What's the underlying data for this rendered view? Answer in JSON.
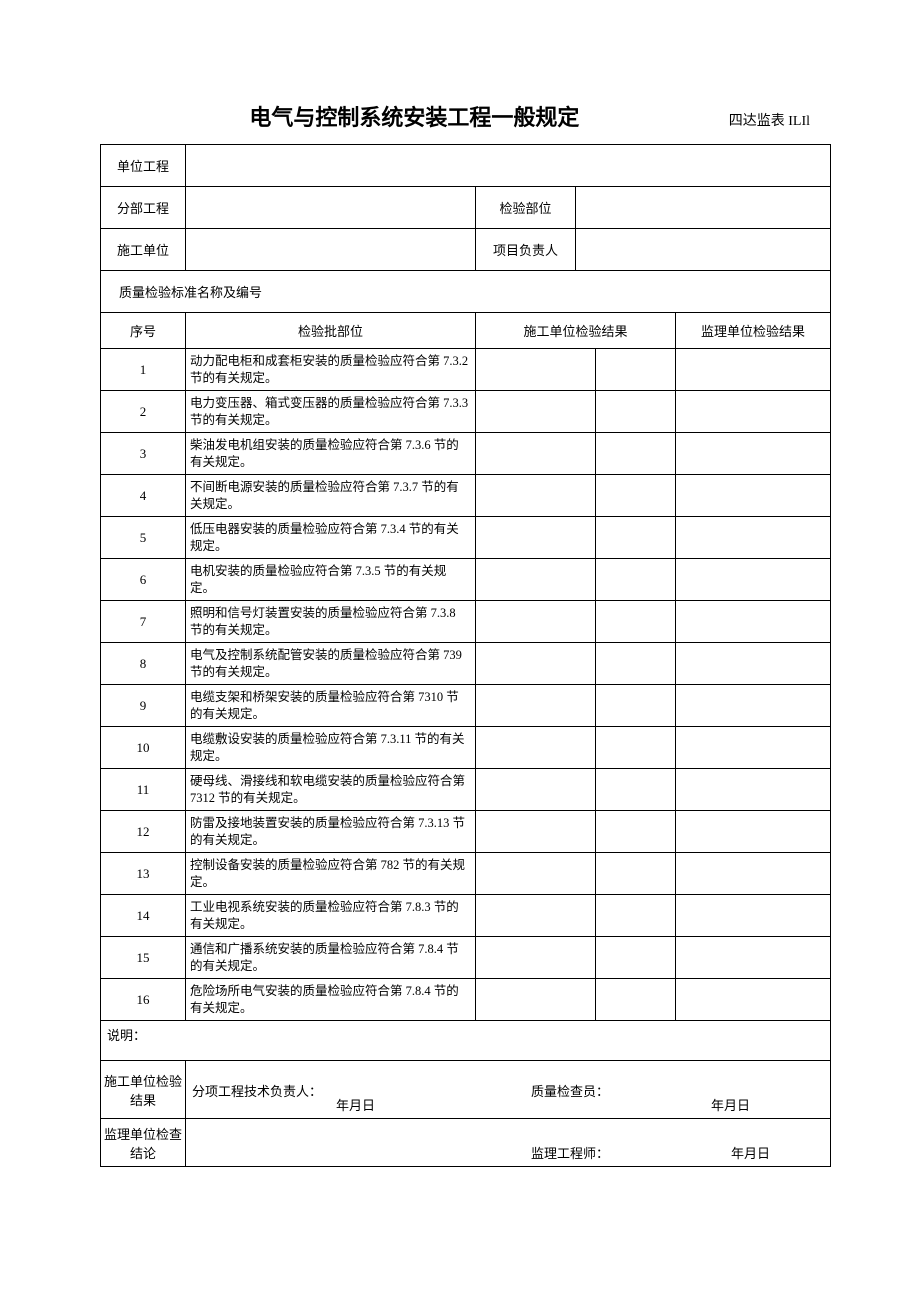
{
  "title": "电气与控制系统安装工程一般规定",
  "form_code": "四达监表 ILIl",
  "meta": {
    "unit_project_label": "单位工程",
    "sub_project_label": "分部工程",
    "inspection_part_label": "检验部位",
    "construction_unit_label": "施工单位",
    "project_leader_label": "项目负责人",
    "quality_std_label": "质量检验标准名称及编号"
  },
  "headers": {
    "seq": "序号",
    "batch_part": "检验批部位",
    "construction_result": "施工单位检验结果",
    "supervision_result": "监理单位检验结果"
  },
  "rows": [
    {
      "seq": "1",
      "desc": "动力配电柜和成套柜安装的质量检验应符合第 7.3.2 节的有关规定。"
    },
    {
      "seq": "2",
      "desc": "电力变压器、箱式变压器的质量检验应符合第 7.3.3 节的有关规定。"
    },
    {
      "seq": "3",
      "desc": "柴油发电机组安装的质量检验应符合第 7.3.6 节的有关规定。"
    },
    {
      "seq": "4",
      "desc": "不间断电源安装的质量检验应符合第 7.3.7 节的有关规定。"
    },
    {
      "seq": "5",
      "desc": "低压电器安装的质量检验应符合第 7.3.4 节的有关规定。"
    },
    {
      "seq": "6",
      "desc": "电机安装的质量检验应符合第 7.3.5 节的有关规定。"
    },
    {
      "seq": "7",
      "desc": "照明和信号灯装置安装的质量检验应符合第 7.3.8 节的有关规定。"
    },
    {
      "seq": "8",
      "desc": "电气及控制系统配管安装的质量检验应符合第 739 节的有关规定。"
    },
    {
      "seq": "9",
      "desc": "电缆支架和桥架安装的质量检验应符合第 7310 节的有关规定。"
    },
    {
      "seq": "10",
      "desc": "电缆敷设安装的质量检验应符合第 7.3.11 节的有关规定。"
    },
    {
      "seq": "11",
      "desc": "硬母线、滑接线和软电缆安装的质量检验应符合第 7312 节的有关规定。"
    },
    {
      "seq": "12",
      "desc": "防雷及接地装置安装的质量检验应符合第 7.3.13 节的有关规定。"
    },
    {
      "seq": "13",
      "desc": "控制设备安装的质量检验应符合第 782 节的有关规定。"
    },
    {
      "seq": "14",
      "desc": "工业电视系统安装的质量检验应符合第 7.8.3 节的有关规定。"
    },
    {
      "seq": "15",
      "desc": "通信和广播系统安装的质量检验应符合第 7.8.4 节的有关规定。"
    },
    {
      "seq": "16",
      "desc": "危险场所电气安装的质量检验应符合第 7.8.4 节的有关规定。"
    }
  ],
  "note_label": "说明：",
  "signatures": {
    "construction_result_label": "施工单位检验结果",
    "tech_leader_label": "分项工程技术负责人：",
    "quality_inspector_label": "质量检查员：",
    "date_label": "年月日",
    "supervision_conclusion_label": "监理单位检查结论",
    "supervision_engineer_label": "监理工程师："
  }
}
